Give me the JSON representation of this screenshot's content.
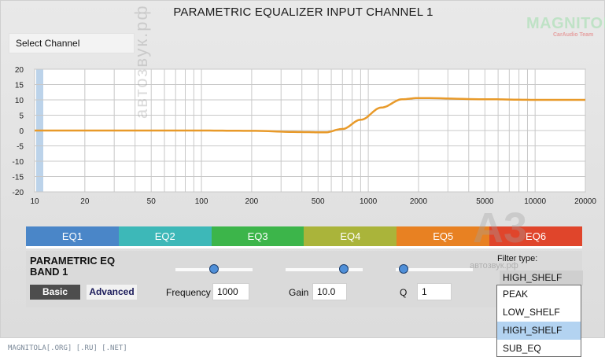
{
  "window": {
    "title": "PARAMETRIC EQUALIZER INPUT CHANNEL 1"
  },
  "logo": {
    "main": "MAGNITOLA",
    "sub": "CarAudio Team"
  },
  "select_channel": {
    "label": "Select Channel"
  },
  "chart_data": {
    "type": "line",
    "x_scale": "log",
    "xlim": [
      10,
      20000
    ],
    "ylim": [
      -20,
      20
    ],
    "x_ticks": [
      "10",
      "20",
      "50",
      "100",
      "200",
      "500",
      "1000",
      "2000",
      "5000",
      "10000",
      "20000"
    ],
    "y_ticks": [
      "20",
      "15",
      "10",
      "5",
      "0",
      "-5",
      "-10",
      "-15",
      "-20"
    ],
    "grid": true,
    "series": [
      {
        "color": "#e89a2a",
        "x": [
          10,
          50,
          100,
          200,
          400,
          550,
          700,
          900,
          1200,
          1600,
          2000,
          5000,
          10000,
          20000
        ],
        "y": [
          0,
          0,
          0,
          -0.1,
          -0.5,
          -0.6,
          0.5,
          3.5,
          7.5,
          10.2,
          10.6,
          10.2,
          10,
          10
        ]
      }
    ]
  },
  "tabs": [
    {
      "label": "EQ1",
      "color": "#4a86c8",
      "active": true
    },
    {
      "label": "EQ2",
      "color": "#3db8b8"
    },
    {
      "label": "EQ3",
      "color": "#3cb54a"
    },
    {
      "label": "EQ4",
      "color": "#aab43a"
    },
    {
      "label": "EQ5",
      "color": "#e88122"
    },
    {
      "label": "EQ6",
      "color": "#e0452b"
    }
  ],
  "band": {
    "title": "PARAMETRIC EQ BAND 1",
    "basic_label": "Basic",
    "advanced_label": "Advanced",
    "frequency": {
      "label": "Frequency",
      "value": "1000",
      "slider_level": 0.5
    },
    "gain": {
      "label": "Gain",
      "value": "10.0",
      "slider_level": 0.75
    },
    "q": {
      "label": "Q",
      "value": "1",
      "slider_level": 0.1
    },
    "filter_type": {
      "label": "Filter type:",
      "value": "HIGH_SHELF"
    }
  },
  "dropdown": {
    "options": [
      "PEAK",
      "LOW_SHELF",
      "HIGH_SHELF",
      "SUB_EQ"
    ],
    "selected": "HIGH_SHELF"
  },
  "footer": {
    "text": "MAGNITOLA[.ORG] [.RU] [.NET]"
  },
  "watermarks": {
    "vertical": "автозвук.рф",
    "logo": "A3",
    "logo_sub": "автозвук.рф"
  }
}
